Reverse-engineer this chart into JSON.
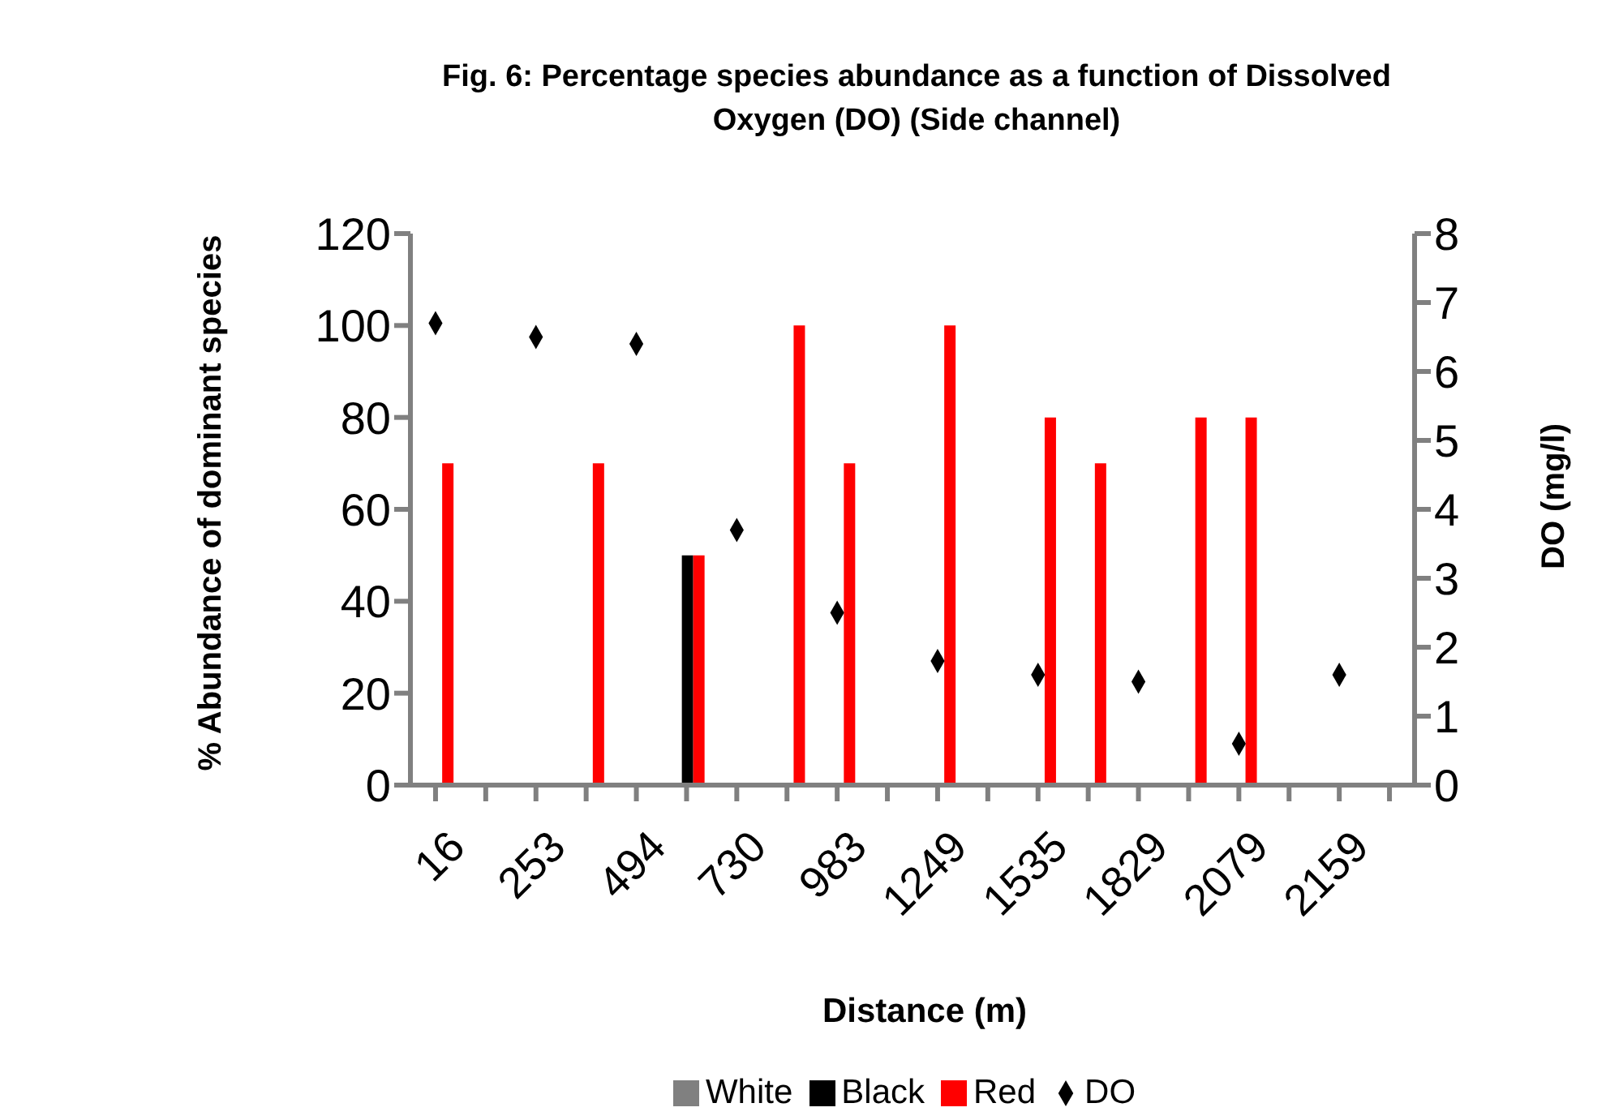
{
  "chart_data": {
    "type": "bar",
    "title": "Fig. 6: Percentage species abundance as a function of Dissolved Oxygen (DO) (Side channel)",
    "xlabel": "Distance (m)",
    "ylabel": "% Abundance of dominant species",
    "y2label": "DO (mg/l)",
    "categories": [
      "16",
      null,
      "253",
      null,
      "494",
      null,
      "730",
      null,
      "983",
      null,
      "1249",
      null,
      "1535",
      null,
      "1829",
      null,
      "2079",
      null,
      "2159",
      null
    ],
    "series": [
      {
        "name": "White",
        "color": "#808080",
        "values": [
          null,
          null,
          null,
          null,
          null,
          null,
          null,
          null,
          null,
          null,
          null,
          null,
          null,
          null,
          null,
          null,
          null,
          null,
          null,
          null
        ]
      },
      {
        "name": "Black",
        "color": "#000000",
        "values": [
          null,
          null,
          null,
          null,
          null,
          50,
          null,
          null,
          null,
          null,
          null,
          null,
          null,
          null,
          null,
          null,
          null,
          null,
          null,
          null
        ]
      },
      {
        "name": "Red",
        "color": "#ff0000",
        "values": [
          70,
          null,
          null,
          70,
          null,
          50,
          null,
          100,
          70,
          null,
          100,
          null,
          80,
          70,
          null,
          80,
          80,
          null,
          null,
          null
        ]
      },
      {
        "name": "DO",
        "type": "scatter",
        "axis": "y2",
        "color": "#000000",
        "values": [
          6.7,
          null,
          6.5,
          null,
          6.4,
          null,
          3.7,
          null,
          2.5,
          null,
          1.8,
          null,
          1.6,
          null,
          1.5,
          null,
          0.6,
          null,
          1.6,
          null
        ]
      }
    ],
    "ylim": [
      0,
      120
    ],
    "yticks": [
      0,
      20,
      40,
      60,
      80,
      100,
      120
    ],
    "y2lim": [
      0,
      8
    ],
    "y2ticks": [
      0,
      1,
      2,
      3,
      4,
      5,
      6,
      7,
      8
    ],
    "marker": "diamond",
    "legend": "bottom"
  }
}
